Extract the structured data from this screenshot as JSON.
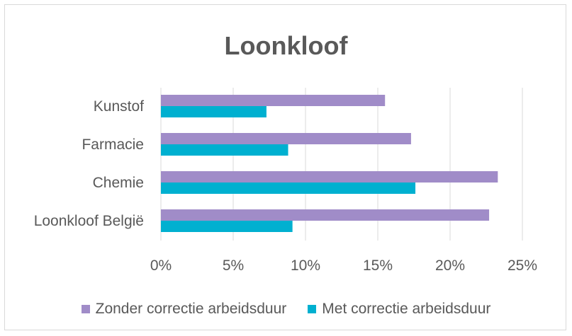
{
  "chart_data": {
    "type": "bar",
    "orientation": "horizontal",
    "title": "Loonkloof",
    "categories": [
      "Kunstof",
      "Farmacie",
      "Chemie",
      "Loonkloof België"
    ],
    "series": [
      {
        "name": "Zonder correctie arbeidsduur",
        "color": "#a08cc8",
        "values": [
          15.5,
          17.3,
          23.3,
          22.7
        ]
      },
      {
        "name": "Met correctie arbeidsduur",
        "color": "#00b0d0",
        "values": [
          7.3,
          8.8,
          17.6,
          9.1
        ]
      }
    ],
    "x_ticks": [
      "0%",
      "5%",
      "10%",
      "15%",
      "20%",
      "25%"
    ],
    "xlim": [
      0,
      25
    ],
    "grid": "vertical",
    "legend": "bottom"
  }
}
